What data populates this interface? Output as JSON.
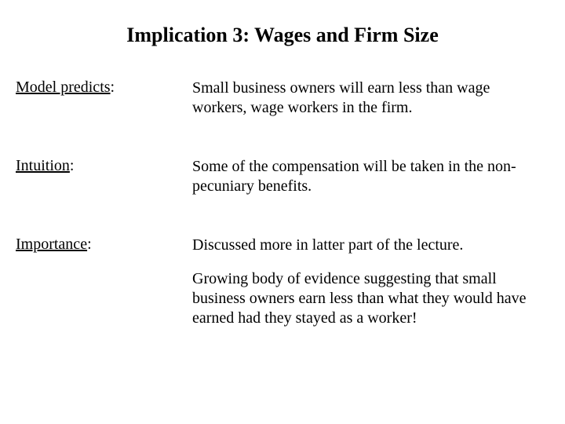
{
  "title": "Implication 3:  Wages and Firm Size",
  "rows": [
    {
      "label": "Model predicts",
      "text": "Small business owners will earn less than wage workers, wage workers in the firm."
    },
    {
      "label": "Intuition",
      "text": "Some of the compensation will be taken in the non-pecuniary benefits."
    },
    {
      "label": "Importance",
      "text": "Discussed more in latter part of the lecture."
    },
    {
      "label": "",
      "text": "Growing body of evidence suggesting that small business owners earn less than what they would have earned had they stayed as a worker!"
    }
  ]
}
